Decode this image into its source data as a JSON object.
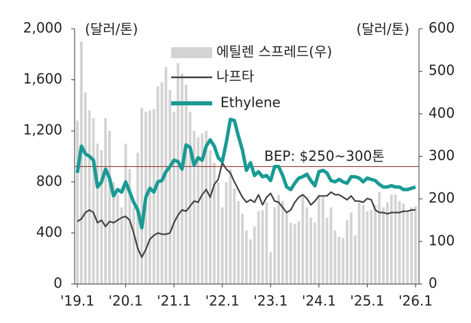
{
  "chart_data": {
    "type": "combo",
    "y_label": "(달러/톤)",
    "y2_label": "(달러/톤)",
    "categories": [
      "'19.1",
      null,
      null,
      null,
      null,
      null,
      null,
      null,
      null,
      null,
      null,
      null,
      "'20.1",
      null,
      null,
      null,
      null,
      null,
      null,
      null,
      null,
      null,
      null,
      null,
      "'21.1",
      null,
      null,
      null,
      null,
      null,
      null,
      null,
      null,
      null,
      null,
      null,
      "'22.1",
      null,
      null,
      null,
      null,
      null,
      null,
      null,
      null,
      null,
      null,
      null,
      "'23.1",
      null,
      null,
      null,
      null,
      null,
      null,
      null,
      null,
      null,
      null,
      null,
      "'24.1",
      null,
      null,
      null,
      null,
      null,
      null,
      null,
      null,
      null,
      null,
      null,
      "'25.1",
      null,
      null,
      null,
      null,
      null,
      null,
      null,
      null,
      null,
      null,
      null,
      "'26.1"
    ],
    "ylim": [
      0,
      2000
    ],
    "yticks": [
      0,
      400,
      800,
      {
        "value": 1200,
        "label": "1,200"
      },
      {
        "value": 1600,
        "label": "1,600"
      },
      {
        "value": 2000,
        "label": "2,000"
      }
    ],
    "y2lim": [
      0,
      600
    ],
    "y2ticks": [
      0,
      100,
      200,
      300,
      400,
      500,
      600
    ],
    "series": [
      {
        "name": "에틸렌 스프레드(우)",
        "type": "bar",
        "axis": "y2",
        "color": "#d3d3d3",
        "values": [
          384,
          570,
          450,
          408,
          390,
          330,
          315,
          390,
          360,
          240,
          210,
          180,
          330,
          270,
          180,
          309,
          414,
          405,
          408,
          411,
          465,
          474,
          510,
          456,
          405,
          519,
          495,
          468,
          405,
          360,
          345,
          354,
          360,
          315,
          285,
          240,
          180,
          240,
          270,
          225,
          195,
          165,
          126,
          105,
          135,
          171,
          174,
          192,
          75,
          180,
          210,
          195,
          168,
          144,
          141,
          147,
          210,
          180,
          156,
          144,
          210,
          204,
          156,
          180,
          126,
          111,
          108,
          150,
          168,
          114,
          192,
          186,
          171,
          174,
          186,
          216,
          180,
          192,
          210,
          210,
          195,
          189,
          168,
          180,
          183
        ]
      },
      {
        "name": "나프타",
        "type": "line",
        "color": "#404040",
        "values": [
          490,
          510,
          560,
          580,
          560,
          480,
          500,
          450,
          490,
          480,
          500,
          520,
          530,
          500,
          400,
          280,
          210,
          270,
          350,
          380,
          400,
          390,
          390,
          400,
          480,
          540,
          580,
          570,
          610,
          650,
          640,
          700,
          740,
          680,
          780,
          820,
          950,
          900,
          870,
          800,
          740,
          680,
          640,
          660,
          640,
          700,
          620,
          680,
          710,
          650,
          640,
          600,
          560,
          580,
          640,
          680,
          700,
          670,
          620,
          650,
          690,
          690,
          690,
          720,
          700,
          700,
          680,
          660,
          690,
          650,
          650,
          640,
          670,
          660,
          580,
          560,
          560,
          550,
          560,
          560,
          560,
          570,
          570,
          580,
          580
        ]
      },
      {
        "name": "Ethylene",
        "type": "line",
        "color": "#1a9a94",
        "values": [
          870,
          1080,
          1020,
          1000,
          970,
          760,
          800,
          900,
          830,
          690,
          740,
          720,
          800,
          720,
          640,
          580,
          440,
          680,
          750,
          720,
          800,
          810,
          880,
          920,
          970,
          960,
          900,
          1090,
          1070,
          930,
          990,
          970,
          1080,
          1130,
          1080,
          990,
          960,
          1110,
          1290,
          1280,
          1160,
          1050,
          890,
          950,
          850,
          880,
          840,
          850,
          810,
          920,
          920,
          850,
          760,
          740,
          790,
          830,
          840,
          860,
          810,
          770,
          880,
          890,
          870,
          810,
          800,
          820,
          800,
          790,
          840,
          840,
          830,
          800,
          830,
          820,
          810,
          780,
          760,
          760,
          770,
          760,
          760,
          740,
          740,
          750,
          760
        ]
      }
    ],
    "reference_line": {
      "value": 276,
      "axis": "y2",
      "label": "BEP: $250~300톤",
      "color": "#8b1a1a"
    }
  }
}
